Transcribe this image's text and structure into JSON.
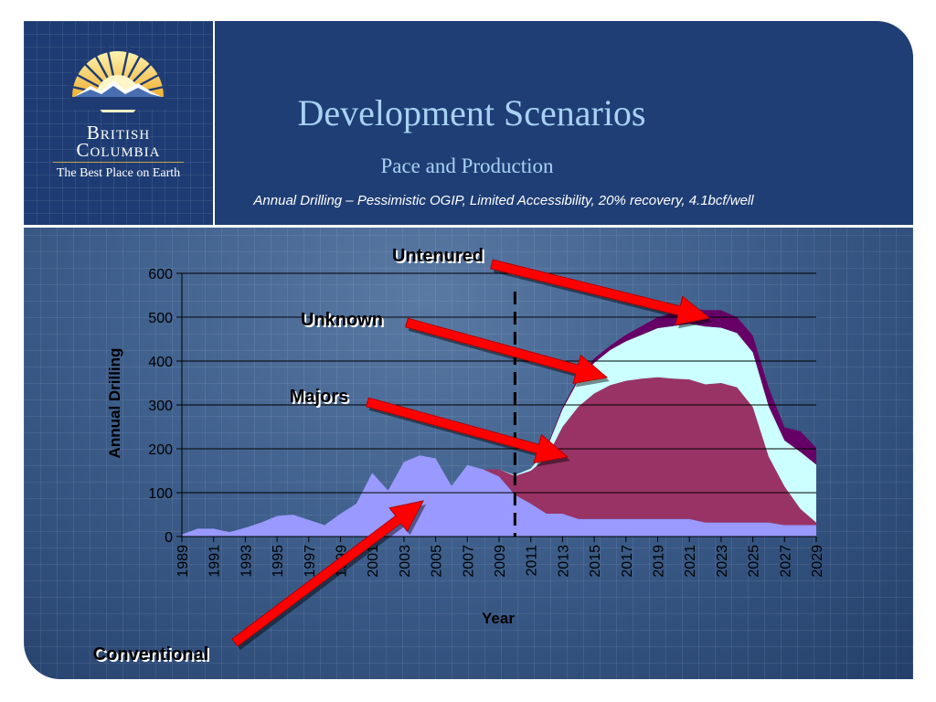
{
  "logo": {
    "line1": "British",
    "line2": "Columbia",
    "tagline": "The Best Place on Earth"
  },
  "header": {
    "title": "Development Scenarios",
    "subtitle": "Pace and Production",
    "caption": "Annual Drilling –  Pessimistic OGIP, Limited Accessibility, 20% recovery, 4.1bcf/well"
  },
  "colors": {
    "conventional": "#9999ff",
    "majors": "#993366",
    "unknown": "#ccffff",
    "untenured": "#660066",
    "arrow": "#ff0000",
    "callout_text": "#000000"
  },
  "callouts": {
    "untenured": "Untenured",
    "unknown": "Unknown",
    "majors": "Majors",
    "conventional": "Conventional"
  },
  "chart_data": {
    "type": "area",
    "stacked": true,
    "title": "",
    "xlabel": "Year",
    "ylabel": "Annual Drilling",
    "ylim": [
      0,
      600
    ],
    "yticks": [
      0,
      100,
      200,
      300,
      400,
      500,
      600
    ],
    "xticks": [
      "1989",
      "1991",
      "1993",
      "1995",
      "1997",
      "1999",
      "2001",
      "2003",
      "2005",
      "2007",
      "2009",
      "2011",
      "2013",
      "2015",
      "2017",
      "2019",
      "2021",
      "2023",
      "2025",
      "2027",
      "2029"
    ],
    "grid": "horizontal",
    "divider_year": 2010,
    "x": [
      1989,
      1990,
      1991,
      1992,
      1993,
      1994,
      1995,
      1996,
      1997,
      1998,
      1999,
      2000,
      2001,
      2002,
      2003,
      2004,
      2005,
      2006,
      2007,
      2008,
      2009,
      2010,
      2011,
      2012,
      2013,
      2014,
      2015,
      2016,
      2017,
      2018,
      2019,
      2020,
      2021,
      2022,
      2023,
      2024,
      2025,
      2026,
      2027,
      2028,
      2029
    ],
    "series": [
      {
        "name": "Conventional",
        "values": [
          5,
          18,
          18,
          10,
          20,
          32,
          47,
          50,
          38,
          26,
          52,
          75,
          145,
          105,
          170,
          185,
          178,
          115,
          163,
          153,
          137,
          95,
          75,
          52,
          52,
          40,
          40,
          40,
          40,
          40,
          40,
          40,
          40,
          32,
          32,
          32,
          32,
          32,
          26,
          26,
          26
        ]
      },
      {
        "name": "Majors",
        "values": [
          0,
          0,
          0,
          0,
          0,
          0,
          0,
          0,
          0,
          0,
          0,
          0,
          0,
          0,
          0,
          0,
          0,
          0,
          0,
          0,
          16,
          43,
          75,
          128,
          198,
          256,
          286,
          305,
          315,
          320,
          323,
          320,
          318,
          315,
          318,
          308,
          263,
          150,
          88,
          37,
          6
        ]
      },
      {
        "name": "Unknown",
        "values": [
          0,
          0,
          0,
          0,
          0,
          0,
          0,
          0,
          0,
          0,
          0,
          0,
          0,
          0,
          0,
          0,
          0,
          0,
          0,
          0,
          0,
          2,
          5,
          20,
          40,
          60,
          70,
          80,
          90,
          100,
          112,
          120,
          127,
          132,
          126,
          124,
          125,
          115,
          105,
          130,
          132
        ]
      },
      {
        "name": "Untenured",
        "values": [
          0,
          0,
          0,
          0,
          0,
          0,
          0,
          0,
          0,
          0,
          0,
          0,
          0,
          0,
          0,
          0,
          0,
          0,
          0,
          0,
          0,
          0,
          0,
          3,
          5,
          5,
          10,
          10,
          15,
          20,
          25,
          30,
          35,
          37,
          40,
          36,
          38,
          42,
          30,
          47,
          38
        ]
      }
    ]
  }
}
